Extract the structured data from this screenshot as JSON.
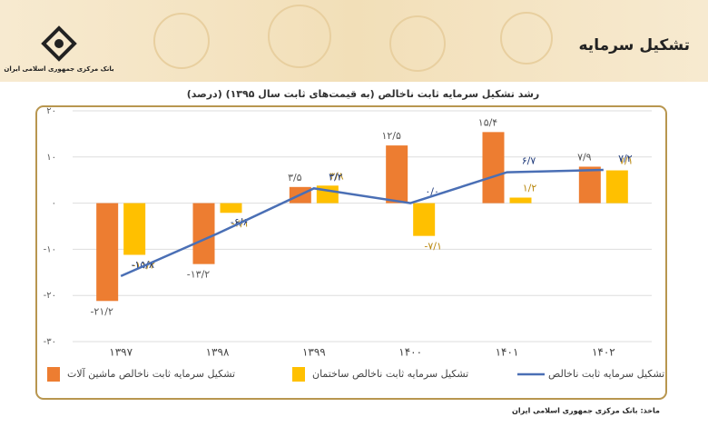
{
  "header": {
    "title": "تشکیل سرمایه",
    "logo_text": "بانک مرکزی جمهوری اسلامی ایران"
  },
  "chart_data": {
    "type": "bar_line",
    "title": "رشد تشکیل سرمایه ثابت ناخالص (به قیمت‌های ثابت سال ۱۳۹۵) (درصد)",
    "categories": [
      "۱۳۹۷",
      "۱۳۹۸",
      "۱۳۹۹",
      "۱۴۰۰",
      "۱۴۰۱",
      "۱۴۰۲"
    ],
    "series": [
      {
        "name": "تشکیل سرمایه ثابت ناخالص ماشین آلات",
        "type": "bar",
        "color": "#ed7d31",
        "values": [
          -21.2,
          -13.2,
          3.5,
          12.5,
          15.4,
          7.9
        ],
        "value_labels": [
          "-۲۱/۲",
          "-۱۳/۲",
          "۳/۵",
          "۱۲/۵",
          "۱۵/۴",
          "۷/۹"
        ]
      },
      {
        "name": "تشکیل سرمایه ثابت ناخالص ساختمان",
        "type": "bar",
        "color": "#ffc000",
        "values": [
          -11.2,
          -2.1,
          3.8,
          -7.1,
          1.2,
          7.1
        ],
        "value_labels": [
          "-۱۱/۲",
          "-۲/۱",
          "۳/۸",
          "-۷/۱",
          "۱/۲",
          "۷/۱"
        ]
      },
      {
        "name": "تشکیل سرمایه ثابت ناخالص",
        "type": "line",
        "color": "#4a6fb5",
        "values": [
          -15.8,
          -6.6,
          3.2,
          0.0,
          6.7,
          7.2
        ],
        "value_labels": [
          "-۱۵/۸",
          "-۶/۶",
          "۳/۲",
          "۰/۰",
          "۶/۷",
          "۷/۲"
        ]
      }
    ],
    "ylim": [
      -30,
      20
    ],
    "yticks": [
      {
        "value": -30,
        "label": "-۳۰"
      },
      {
        "value": -20,
        "label": "-۲۰"
      },
      {
        "value": -10,
        "label": "-۱۰"
      },
      {
        "value": 0,
        "label": "۰"
      },
      {
        "value": 10,
        "label": "۱۰"
      },
      {
        "value": 20,
        "label": "۲۰"
      }
    ],
    "grid": true,
    "source": "ماخذ: بانک مرکزی جمهوری اسلامی ایران"
  }
}
